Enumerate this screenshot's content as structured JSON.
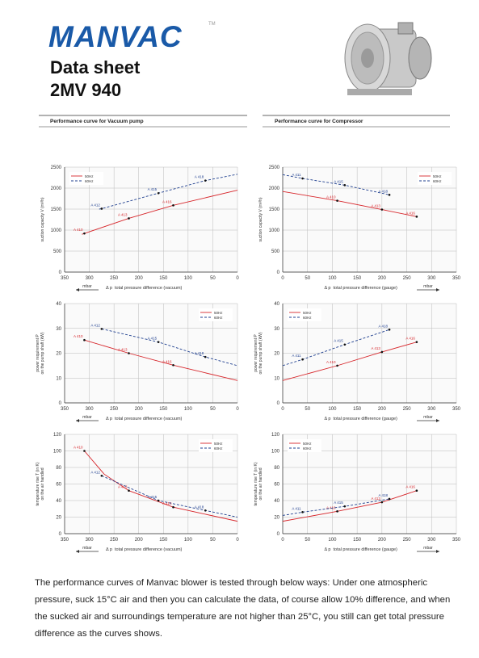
{
  "header": {
    "logo": "MANVAC",
    "trademark": "TM",
    "title": "Data sheet",
    "model": "2MV 940"
  },
  "sections": [
    "Performance curve for Vacuum pump",
    "Performance curve for Compressor"
  ],
  "chart_data": [
    {
      "type": "line",
      "ylabel": [
        "suction capacity V (m³/h)"
      ],
      "xsymbol": "Δ p",
      "xlabel": "total pressure difference (vacuum)",
      "xunit": "mbar",
      "xlim": [
        350,
        0
      ],
      "xticks": [
        350,
        300,
        250,
        200,
        150,
        100,
        50,
        0
      ],
      "ylim": [
        0,
        2500
      ],
      "yticks": [
        0,
        500,
        1000,
        1500,
        2000,
        2500
      ],
      "grid": true,
      "legend": "upper left",
      "series": [
        {
          "name": "50Hz",
          "color": "#d7262b",
          "dashed": false,
          "x": [
            315,
            310,
            220,
            130,
            0
          ],
          "values": [
            900,
            920,
            1280,
            1590,
            1950
          ],
          "point_labels": [
            null,
            "A 410",
            "A 413",
            "A 416",
            null
          ]
        },
        {
          "name": "60Hz",
          "color": "#1f3f8f",
          "dashed": true,
          "x": [
            280,
            275,
            160,
            65,
            0
          ],
          "values": [
            1500,
            1510,
            1880,
            2180,
            2330
          ],
          "point_labels": [
            null,
            "A 412",
            "A 415",
            "A 418",
            null
          ]
        }
      ]
    },
    {
      "type": "line",
      "ylabel": [
        "suction capacity V (m³/h)"
      ],
      "xsymbol": "Δ p",
      "xlabel": "total pressure difference (gauge)",
      "xunit": "mbar",
      "xlim": [
        0,
        350
      ],
      "xticks": [
        0,
        50,
        100,
        150,
        200,
        250,
        300,
        350
      ],
      "ylim": [
        0,
        2500
      ],
      "yticks": [
        0,
        500,
        1000,
        1500,
        2000,
        2500
      ],
      "grid": true,
      "legend": "upper right",
      "series": [
        {
          "name": "50Hz",
          "color": "#d7262b",
          "dashed": false,
          "x": [
            0,
            110,
            200,
            270
          ],
          "values": [
            1920,
            1700,
            1490,
            1320
          ],
          "point_labels": [
            null,
            "A 410",
            "A 413",
            "A 416"
          ]
        },
        {
          "name": "60Hz",
          "color": "#1f3f8f",
          "dashed": true,
          "x": [
            0,
            40,
            125,
            215
          ],
          "values": [
            2320,
            2230,
            2070,
            1840
          ],
          "point_labels": [
            null,
            "A 411",
            "A 415",
            "A 418"
          ]
        }
      ]
    },
    {
      "type": "line",
      "ylabel": [
        "power requirement P",
        "on the pump shaft (kW)"
      ],
      "xsymbol": "Δ p",
      "xlabel": "total pressure difference (vacuum)",
      "xunit": "mbar",
      "xlim": [
        350,
        0
      ],
      "xticks": [
        350,
        300,
        250,
        200,
        150,
        100,
        50,
        0
      ],
      "ylim": [
        0,
        40
      ],
      "yticks": [
        0,
        10,
        20,
        30,
        40
      ],
      "grid": true,
      "legend": "upper right",
      "series": [
        {
          "name": "50Hz",
          "color": "#d7262b",
          "dashed": false,
          "x": [
            310,
            220,
            130,
            0
          ],
          "values": [
            25.3,
            20,
            15.2,
            9
          ],
          "point_labels": [
            "A 410",
            "A 413",
            "A 416",
            null
          ]
        },
        {
          "name": "60Hz",
          "color": "#1f3f8f",
          "dashed": true,
          "x": [
            275,
            160,
            65,
            0
          ],
          "values": [
            29.8,
            24.5,
            18.5,
            15
          ],
          "point_labels": [
            "A 412",
            "A 415",
            "A 418",
            null
          ]
        }
      ]
    },
    {
      "type": "line",
      "ylabel": [
        "power requirement P",
        "on the pump shaft (kW)"
      ],
      "xsymbol": "Δ p",
      "xlabel": "total pressure difference (gauge)",
      "xunit": "mbar",
      "xlim": [
        0,
        350
      ],
      "xticks": [
        0,
        50,
        100,
        150,
        200,
        250,
        300,
        350
      ],
      "ylim": [
        0,
        40
      ],
      "yticks": [
        0,
        10,
        20,
        30,
        40
      ],
      "grid": true,
      "legend": "upper left",
      "series": [
        {
          "name": "50Hz",
          "color": "#d7262b",
          "dashed": false,
          "x": [
            0,
            110,
            200,
            270
          ],
          "values": [
            9,
            15,
            20.5,
            24.5
          ],
          "point_labels": [
            null,
            "A 410",
            "A 413",
            "A 416"
          ]
        },
        {
          "name": "60Hz",
          "color": "#1f3f8f",
          "dashed": true,
          "x": [
            0,
            40,
            125,
            215
          ],
          "values": [
            15,
            17.5,
            23.5,
            29.5
          ],
          "point_labels": [
            null,
            "A 411",
            "A 415",
            "A 418"
          ]
        }
      ]
    },
    {
      "type": "line",
      "ylabel": [
        "temperature rise T (in K)",
        "on the air handled"
      ],
      "xsymbol": "Δ p",
      "xlabel": "total pressure difference (vacuum)",
      "xunit": "mbar",
      "xlim": [
        350,
        0
      ],
      "xticks": [
        350,
        300,
        250,
        200,
        150,
        100,
        50,
        0
      ],
      "ylim": [
        0,
        120
      ],
      "yticks": [
        0,
        20,
        40,
        60,
        80,
        100,
        120
      ],
      "grid": true,
      "legend": "upper right",
      "series": [
        {
          "name": "50Hz",
          "color": "#d7262b",
          "dashed": false,
          "x": [
            310,
            270,
            220,
            130,
            0
          ],
          "values": [
            100,
            72,
            52,
            32,
            15
          ],
          "point_labels": [
            "A 410",
            null,
            "A 413",
            "A 416",
            null
          ]
        },
        {
          "name": "60Hz",
          "color": "#1f3f8f",
          "dashed": true,
          "x": [
            275,
            160,
            65,
            0
          ],
          "values": [
            70,
            40,
            28,
            20
          ],
          "point_labels": [
            "A 412",
            "A 415",
            "A 418",
            null
          ]
        }
      ]
    },
    {
      "type": "line",
      "ylabel": [
        "temperature rise T (in K)",
        "on the air handled"
      ],
      "xsymbol": "Δ p",
      "xlabel": "total pressure difference (gauge)",
      "xunit": "mbar",
      "xlim": [
        0,
        350
      ],
      "xticks": [
        0,
        50,
        100,
        150,
        200,
        250,
        300,
        350
      ],
      "ylim": [
        0,
        120
      ],
      "yticks": [
        0,
        20,
        40,
        60,
        80,
        100,
        120
      ],
      "grid": true,
      "legend": "upper left",
      "series": [
        {
          "name": "50Hz",
          "color": "#d7262b",
          "dashed": false,
          "x": [
            0,
            110,
            200,
            270
          ],
          "values": [
            15,
            27,
            38,
            52
          ],
          "point_labels": [
            null,
            "A 410",
            "A 413",
            "A 416"
          ]
        },
        {
          "name": "60Hz",
          "color": "#1f3f8f",
          "dashed": true,
          "x": [
            0,
            40,
            125,
            215
          ],
          "values": [
            22,
            26,
            33,
            42
          ],
          "point_labels": [
            null,
            "A 411",
            "A 415",
            "A 418"
          ]
        }
      ]
    }
  ],
  "footer_text": "The performance curves of Manvac blower is tested through below ways: Under one atmospheric pressure, suck 15°C air and then you can calculate the data, of course allow 10% difference, and when the sucked air and surroundings temperature are not higher than 25°C, you still can get total pressure difference as the curves shows."
}
